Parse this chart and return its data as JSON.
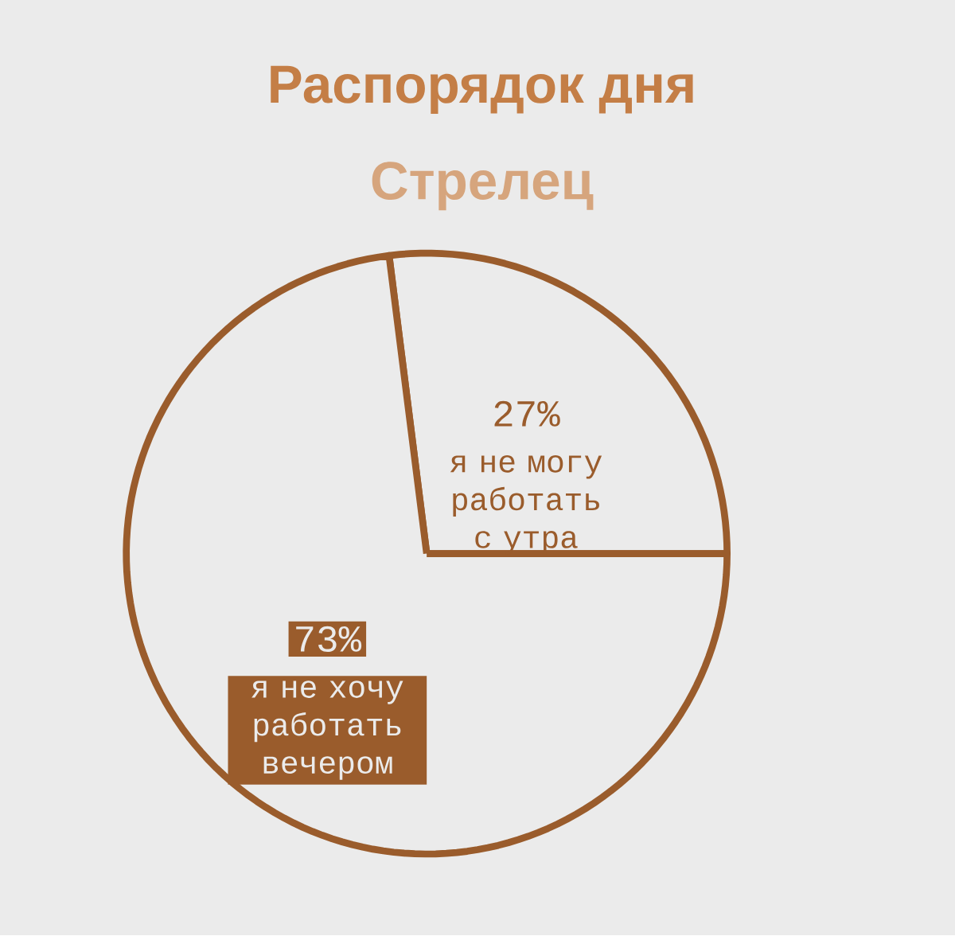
{
  "chart_data": {
    "type": "pie",
    "title": "Распорядок дня",
    "subtitle": "Стрелец",
    "categories": [
      "я не хочу работать вечером",
      "я не могу работать с утра"
    ],
    "values": [
      73,
      27
    ],
    "colors": [
      "#9a5c2c",
      "#9a5c2c"
    ],
    "value_labels": [
      "73%",
      "27%"
    ]
  }
}
